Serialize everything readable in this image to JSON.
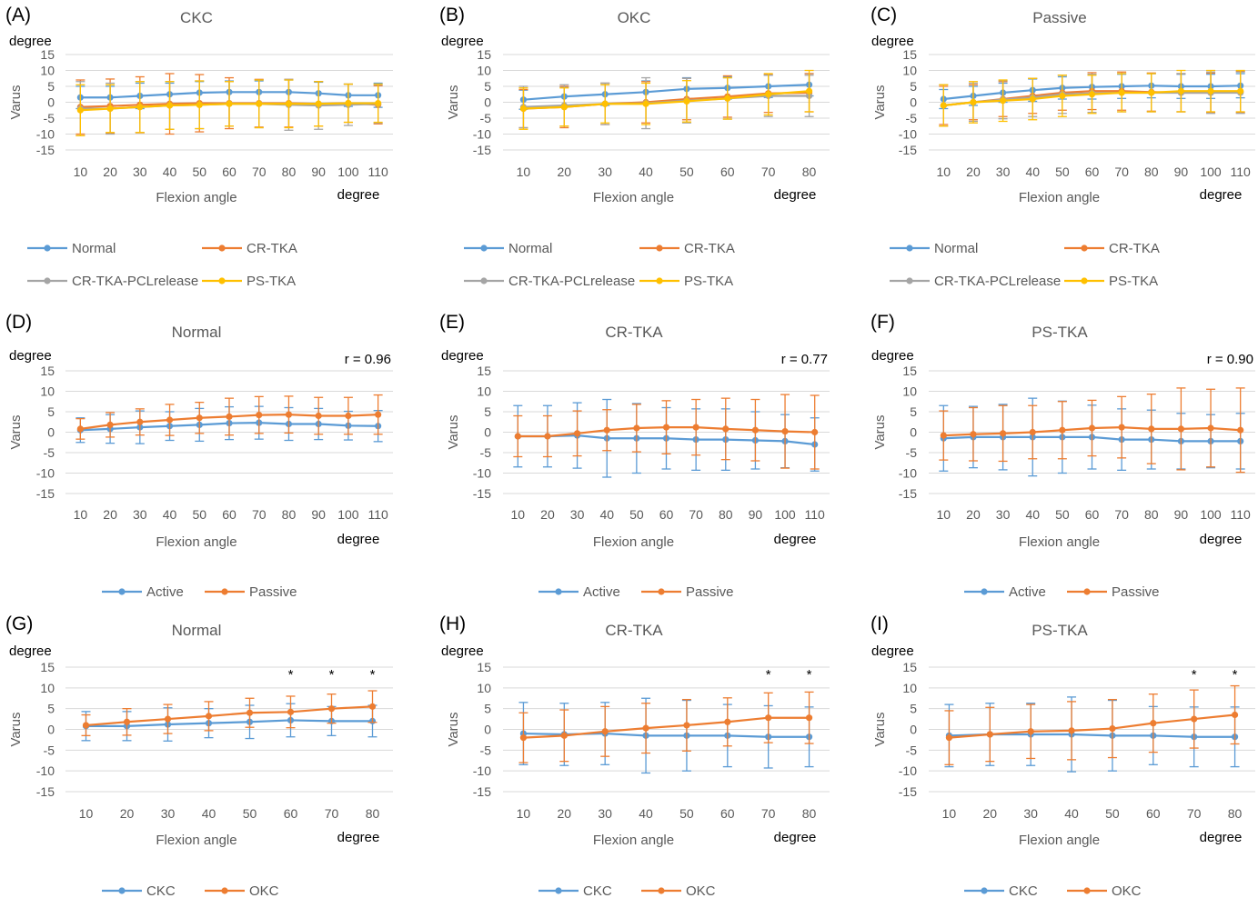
{
  "colors": {
    "blue": "#5b9bd5",
    "orange": "#ed7d31",
    "gray": "#a5a5a5",
    "yellow": "#ffc000",
    "grid": "#d9d9d9",
    "axis_text": "#595959"
  },
  "chart_data": [
    {
      "panel": "(A)",
      "type": "line",
      "title": "CKC",
      "ylabel": "Varus",
      "yunit": "degree",
      "xlabel": "Flexion angle",
      "xunit": "degree",
      "ylim": [
        -15,
        15
      ],
      "yticks": [
        15,
        10,
        5,
        0,
        -5,
        -10,
        -15
      ],
      "grid": true,
      "legend_position": "bottom",
      "legend_cols": 2,
      "categories": [
        "10",
        "20",
        "30",
        "40",
        "50",
        "60",
        "70",
        "80",
        "90",
        "100",
        "110"
      ],
      "series": [
        {
          "name": "Normal",
          "color": "#5b9bd5",
          "values": [
            1.5,
            1.5,
            2,
            2.5,
            3,
            3.2,
            3.2,
            3.2,
            2.8,
            2.2,
            2.2
          ],
          "err": [
            3.5,
            3.5,
            4,
            3.5,
            3.5,
            3.5,
            3.5,
            3.8,
            3.5,
            3.5,
            3.8
          ]
        },
        {
          "name": "CR-TKA",
          "color": "#ed7d31",
          "values": [
            -1.5,
            -1.2,
            -0.8,
            -0.5,
            -0.3,
            -0.3,
            -0.3,
            -0.3,
            -0.5,
            -0.3,
            -0.8
          ],
          "err": [
            8.5,
            8.5,
            8.8,
            9.5,
            9,
            8,
            7.5,
            7.5,
            7,
            6,
            6
          ]
        },
        {
          "name": "CR-TKA-PCLrelease",
          "color": "#a5a5a5",
          "values": [
            -2,
            -2,
            -1.5,
            -1,
            -0.8,
            -0.5,
            -0.5,
            -0.8,
            -1,
            -0.8,
            -0.5
          ],
          "err": [
            8.5,
            8,
            8,
            7.5,
            7.5,
            7,
            7.5,
            8,
            7.5,
            6.5,
            6
          ]
        },
        {
          "name": "PS-TKA",
          "color": "#ffc000",
          "values": [
            -2.5,
            -2,
            -1.5,
            -1,
            -0.8,
            -0.5,
            -0.5,
            -0.5,
            -0.5,
            -0.3,
            -0.3
          ],
          "err": [
            8,
            7.5,
            8,
            7.5,
            7.5,
            7,
            7.5,
            7.5,
            7,
            6,
            6
          ]
        }
      ]
    },
    {
      "panel": "(B)",
      "type": "line",
      "title": "OKC",
      "ylabel": "Varus",
      "yunit": "degree",
      "xlabel": "Flexion angle",
      "xunit": "degree",
      "ylim": [
        -15,
        15
      ],
      "yticks": [
        15,
        10,
        5,
        0,
        -5,
        -10,
        -15
      ],
      "grid": true,
      "legend_position": "bottom",
      "legend_cols": 2,
      "categories": [
        "10",
        "20",
        "30",
        "40",
        "50",
        "60",
        "70",
        "80"
      ],
      "series": [
        {
          "name": "Normal",
          "color": "#5b9bd5",
          "values": [
            0.8,
            1.8,
            2.5,
            3.2,
            4.2,
            4.5,
            5,
            5.5
          ],
          "err": [
            3,
            3,
            3.5,
            3.5,
            3.5,
            3.5,
            3.5,
            3.5
          ]
        },
        {
          "name": "CR-TKA",
          "color": "#ed7d31",
          "values": [
            -2,
            -1.5,
            -0.5,
            0,
            1,
            1.8,
            2.8,
            3
          ],
          "err": [
            6,
            6.5,
            6.5,
            6.5,
            6.5,
            6.5,
            6,
            6
          ]
        },
        {
          "name": "CR-TKA-PCLrelease",
          "color": "#a5a5a5",
          "values": [
            -1.5,
            -1,
            -0.5,
            -0.3,
            0.5,
            1.2,
            2,
            2
          ],
          "err": [
            6.5,
            6.5,
            6.5,
            8,
            7,
            6.5,
            6.5,
            6.5
          ]
        },
        {
          "name": "PS-TKA",
          "color": "#ffc000",
          "values": [
            -2,
            -1.5,
            -0.5,
            -0.5,
            0.3,
            1.2,
            2.5,
            3.5
          ],
          "err": [
            6.5,
            6,
            6,
            6.5,
            6.5,
            6.5,
            6.5,
            6.5
          ]
        }
      ]
    },
    {
      "panel": "(C)",
      "type": "line",
      "title": "Passive",
      "ylabel": "Varus",
      "yunit": "degree",
      "xlabel": "Flexion angle",
      "xunit": "degree",
      "ylim": [
        -15,
        15
      ],
      "yticks": [
        15,
        10,
        5,
        0,
        -5,
        -10,
        -15
      ],
      "grid": true,
      "legend_position": "bottom",
      "legend_cols": 2,
      "categories": [
        "10",
        "20",
        "30",
        "40",
        "50",
        "60",
        "70",
        "80",
        "90",
        "100",
        "110"
      ],
      "series": [
        {
          "name": "Normal",
          "color": "#5b9bd5",
          "values": [
            1,
            2,
            3,
            3.8,
            4.5,
            4.8,
            5,
            5.2,
            5,
            5,
            5.2
          ],
          "err": [
            3,
            3,
            3,
            3.5,
            3.5,
            3.8,
            3.8,
            3.8,
            3.8,
            3.8,
            3.8
          ]
        },
        {
          "name": "CR-TKA",
          "color": "#ed7d31",
          "values": [
            -1,
            0,
            1,
            2,
            3,
            3.5,
            3.5,
            3.2,
            3,
            3,
            3.2
          ],
          "err": [
            6,
            5.5,
            5.5,
            5.5,
            5.5,
            5.8,
            6,
            6,
            6,
            6.2,
            6.5
          ]
        },
        {
          "name": "CR-TKA-PCLrelease",
          "color": "#a5a5a5",
          "values": [
            -1,
            0,
            0.8,
            1.5,
            2.5,
            2.8,
            3,
            3,
            3,
            3,
            3
          ],
          "err": [
            6.5,
            6,
            6,
            6,
            6,
            6,
            6,
            6,
            6,
            6.5,
            6.5
          ]
        },
        {
          "name": "PS-TKA",
          "color": "#ffc000",
          "values": [
            -1,
            0,
            0.5,
            1,
            2,
            2.5,
            3,
            3,
            3.5,
            3.5,
            3.5
          ],
          "err": [
            6.5,
            6.5,
            6.5,
            6.5,
            6.5,
            6,
            6,
            6,
            6.5,
            6.5,
            6.5
          ]
        }
      ]
    },
    {
      "panel": "(D)",
      "type": "line",
      "title": "Normal",
      "r": "r = 0.96",
      "ylabel": "Varus",
      "yunit": "degree",
      "xlabel": "Flexion angle",
      "xunit": "degree",
      "ylim": [
        -15,
        15
      ],
      "yticks": [
        15,
        10,
        5,
        0,
        -5,
        -10,
        -15
      ],
      "grid": true,
      "legend_position": "bottom",
      "legend_cols": 2,
      "categories": [
        "10",
        "20",
        "30",
        "40",
        "50",
        "60",
        "70",
        "80",
        "90",
        "100",
        "110"
      ],
      "series": [
        {
          "name": "Active",
          "color": "#5b9bd5",
          "values": [
            0.5,
            0.8,
            1.2,
            1.5,
            1.8,
            2.2,
            2.3,
            2,
            2,
            1.6,
            1.5
          ],
          "err": [
            3,
            3.5,
            4,
            3.5,
            4,
            4,
            4,
            4,
            3.8,
            3.5,
            3.8
          ]
        },
        {
          "name": "Passive",
          "color": "#ed7d31",
          "values": [
            0.8,
            1.8,
            2.5,
            3,
            3.5,
            3.8,
            4.2,
            4.3,
            4,
            4,
            4.3
          ],
          "err": [
            2.5,
            3,
            3.2,
            3.8,
            3.8,
            4.5,
            4.5,
            4.5,
            4.5,
            4.5,
            4.8
          ]
        }
      ]
    },
    {
      "panel": "(E)",
      "type": "line",
      "title": "CR-TKA",
      "r": "r = 0.77",
      "ylabel": "Varus",
      "yunit": "degree",
      "xlabel": "Flexion angle",
      "xunit": "degree",
      "ylim": [
        -15,
        15
      ],
      "yticks": [
        15,
        10,
        5,
        0,
        -5,
        -10,
        -15
      ],
      "grid": true,
      "legend_position": "bottom",
      "legend_cols": 2,
      "categories": [
        "10",
        "20",
        "30",
        "40",
        "50",
        "60",
        "70",
        "80",
        "90",
        "100",
        "110"
      ],
      "series": [
        {
          "name": "Active",
          "color": "#5b9bd5",
          "values": [
            -1,
            -1,
            -0.8,
            -1.5,
            -1.5,
            -1.5,
            -1.8,
            -1.8,
            -2,
            -2.2,
            -3
          ],
          "err": [
            7.5,
            7.5,
            8,
            9.5,
            8.5,
            7.5,
            7.5,
            7.5,
            7,
            6.5,
            6.5
          ]
        },
        {
          "name": "Passive",
          "color": "#ed7d31",
          "values": [
            -1,
            -1,
            -0.3,
            0.5,
            1,
            1.2,
            1.2,
            0.8,
            0.5,
            0.2,
            0
          ],
          "err": [
            5,
            5,
            5.5,
            5,
            5.8,
            6.5,
            6.8,
            7.5,
            7.5,
            9,
            9
          ]
        }
      ]
    },
    {
      "panel": "(F)",
      "type": "line",
      "title": "PS-TKA",
      "r": "r = 0.90",
      "ylabel": "Varus",
      "yunit": "degree",
      "xlabel": "Flexion angle",
      "xunit": "degree",
      "ylim": [
        -15,
        15
      ],
      "yticks": [
        15,
        10,
        5,
        0,
        -5,
        -10,
        -15
      ],
      "grid": true,
      "legend_position": "bottom",
      "legend_cols": 2,
      "categories": [
        "10",
        "20",
        "30",
        "40",
        "50",
        "60",
        "70",
        "80",
        "90",
        "100",
        "110"
      ],
      "series": [
        {
          "name": "Active",
          "color": "#5b9bd5",
          "values": [
            -1.5,
            -1.2,
            -1.2,
            -1.2,
            -1.2,
            -1.2,
            -1.8,
            -1.8,
            -2.2,
            -2.2,
            -2.2
          ],
          "err": [
            8,
            7.5,
            8,
            9.5,
            8.8,
            7.8,
            7.5,
            7.2,
            6.8,
            6.5,
            6.8
          ]
        },
        {
          "name": "Passive",
          "color": "#ed7d31",
          "values": [
            -0.8,
            -0.5,
            -0.3,
            0,
            0.5,
            1,
            1.2,
            0.8,
            0.8,
            1,
            0.5
          ],
          "err": [
            6,
            6.5,
            6.8,
            6.5,
            7,
            6.8,
            7.5,
            8.5,
            10,
            9.5,
            10.3
          ]
        }
      ]
    },
    {
      "panel": "(G)",
      "type": "line",
      "title": "Normal",
      "ylabel": "Varus",
      "yunit": "degree",
      "xlabel": "Flexion angle",
      "xunit": "degree",
      "ylim": [
        -15,
        15
      ],
      "yticks": [
        15,
        10,
        5,
        0,
        -5,
        -10,
        -15
      ],
      "grid": true,
      "legend_position": "bottom",
      "legend_cols": 2,
      "categories": [
        "10",
        "20",
        "30",
        "40",
        "50",
        "60",
        "70",
        "80"
      ],
      "significance": [
        "",
        "",
        "",
        "",
        "",
        "*",
        "*",
        "*"
      ],
      "series": [
        {
          "name": "CKC",
          "color": "#5b9bd5",
          "values": [
            0.8,
            0.8,
            1.2,
            1.5,
            1.8,
            2.2,
            2,
            2
          ],
          "err": [
            3.5,
            3.5,
            4,
            3.5,
            4,
            4,
            3.5,
            3.8
          ]
        },
        {
          "name": "OKC",
          "color": "#ed7d31",
          "values": [
            1,
            1.8,
            2.5,
            3.2,
            4,
            4.2,
            5,
            5.5
          ],
          "err": [
            2.5,
            3.2,
            3.5,
            3.5,
            3.5,
            3.8,
            3.5,
            3.8
          ]
        }
      ]
    },
    {
      "panel": "(H)",
      "type": "line",
      "title": "CR-TKA",
      "ylabel": "Varus",
      "yunit": "degree",
      "xlabel": "Flexion angle",
      "xunit": "degree",
      "ylim": [
        -15,
        15
      ],
      "yticks": [
        15,
        10,
        5,
        0,
        -5,
        -10,
        -15
      ],
      "grid": true,
      "legend_position": "bottom",
      "legend_cols": 2,
      "categories": [
        "10",
        "20",
        "30",
        "40",
        "50",
        "60",
        "70",
        "80"
      ],
      "significance": [
        "",
        "",
        "",
        "",
        "",
        "",
        "*",
        "*"
      ],
      "series": [
        {
          "name": "CKC",
          "color": "#5b9bd5",
          "values": [
            -1,
            -1.2,
            -1,
            -1.5,
            -1.5,
            -1.5,
            -1.8,
            -1.8
          ],
          "err": [
            7.5,
            7.5,
            7.5,
            9,
            8.5,
            7.5,
            7.5,
            7.2
          ]
        },
        {
          "name": "OKC",
          "color": "#ed7d31",
          "values": [
            -2,
            -1.5,
            -0.5,
            0.3,
            1,
            1.8,
            2.8,
            2.8
          ],
          "err": [
            6,
            6.2,
            6,
            6,
            6.2,
            5.8,
            6,
            6.2
          ]
        }
      ]
    },
    {
      "panel": "(I)",
      "type": "line",
      "title": "PS-TKA",
      "ylabel": "Varus",
      "yunit": "degree",
      "xlabel": "Flexion angle",
      "xunit": "degree",
      "ylim": [
        -15,
        15
      ],
      "yticks": [
        15,
        10,
        5,
        0,
        -5,
        -10,
        -15
      ],
      "grid": true,
      "legend_position": "bottom",
      "legend_cols": 2,
      "categories": [
        "10",
        "20",
        "30",
        "40",
        "50",
        "60",
        "70",
        "80"
      ],
      "significance": [
        "",
        "",
        "",
        "",
        "",
        "",
        "*",
        "*"
      ],
      "series": [
        {
          "name": "CKC",
          "color": "#5b9bd5",
          "values": [
            -1.5,
            -1.2,
            -1.2,
            -1.2,
            -1.5,
            -1.5,
            -1.8,
            -1.8
          ],
          "err": [
            7.5,
            7.5,
            7.5,
            9,
            8.5,
            7,
            7.2,
            7.2
          ]
        },
        {
          "name": "OKC",
          "color": "#ed7d31",
          "values": [
            -2,
            -1.2,
            -0.5,
            -0.3,
            0.2,
            1.5,
            2.5,
            3.5
          ],
          "err": [
            6.5,
            6.5,
            6.5,
            7,
            7,
            7,
            7,
            7
          ]
        }
      ]
    }
  ]
}
